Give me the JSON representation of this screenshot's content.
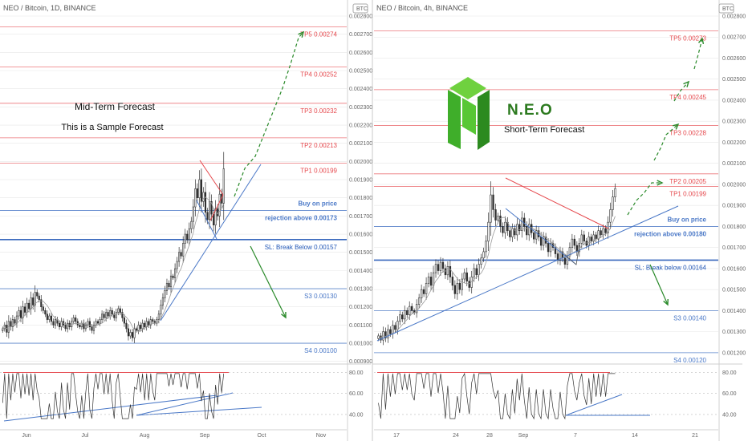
{
  "colors": {
    "tp_red": "#e5484d",
    "blue_level": "#4a78c7",
    "sl_blue": "#2257b6",
    "bull": "#2f2f2f",
    "bear": "#2f2f2f",
    "green_arrow": "#2a8a2a",
    "neo_green_light": "#58c735",
    "neo_green_dark": "#2c8a1f",
    "grid": "#e7e7e7",
    "rsi_red": "#e5484d"
  },
  "chart_data": [
    {
      "type": "candlestick",
      "title": "NEO / Bitcoin, 1D, BINANCE",
      "currency_badge": "BTC",
      "x_tick_labels": [
        "Jun",
        "Jul",
        "Aug",
        "Sep",
        "Oct",
        "Nov"
      ],
      "ylim": [
        0.00089,
        0.0028
      ],
      "y_ticks": [
        "0.002800",
        "0.002700",
        "0.002600",
        "0.002500",
        "0.002400",
        "0.002300",
        "0.002200",
        "0.002100",
        "0.002000",
        "0.001900",
        "0.001800",
        "0.001700",
        "0.001600",
        "0.001500",
        "0.001400",
        "0.001300",
        "0.001200",
        "0.001100",
        "0.001000",
        "0.000900"
      ],
      "annotations": [
        "Mid-Term Forecast",
        "This is a Sample Forecast"
      ],
      "levels": [
        {
          "label": "TP5 0.00274",
          "value": 0.00274,
          "color": "tp_red"
        },
        {
          "label": "TP4 0.00252",
          "value": 0.00252,
          "color": "tp_red"
        },
        {
          "label": "TP3 0.00232",
          "value": 0.00232,
          "color": "tp_red"
        },
        {
          "label": "TP2 0.00213",
          "value": 0.00213,
          "color": "tp_red"
        },
        {
          "label": "TP1 0.00199",
          "value": 0.00199,
          "color": "tp_red"
        },
        {
          "label": "Buy on price",
          "label2": "rejection above 0.00173",
          "value": 0.00173,
          "color": "blue_level"
        },
        {
          "label": "SL: Break Below 0.00157",
          "value": 0.00157,
          "color": "sl_blue"
        },
        {
          "label": "S3 0.00130",
          "value": 0.0013,
          "color": "blue_level"
        },
        {
          "label": "S4 0.00100",
          "value": 0.001,
          "color": "blue_level"
        }
      ],
      "closes": [
        0.00108,
        0.0011,
        0.00106,
        0.00112,
        0.00109,
        0.00113,
        0.00111,
        0.00115,
        0.00118,
        0.00114,
        0.0012,
        0.00117,
        0.00122,
        0.00119,
        0.00125,
        0.00121,
        0.00128,
        0.00126,
        0.00124,
        0.0012,
        0.00118,
        0.00116,
        0.00113,
        0.00115,
        0.00112,
        0.0011,
        0.00113,
        0.00111,
        0.00109,
        0.00112,
        0.0011,
        0.00108,
        0.00111,
        0.00109,
        0.00112,
        0.00114,
        0.00112,
        0.0011,
        0.00109,
        0.00111,
        0.00108,
        0.0011,
        0.00112,
        0.00109,
        0.00107,
        0.0011,
        0.00112,
        0.00111,
        0.00113,
        0.00116,
        0.00114,
        0.00117,
        0.00115,
        0.00118,
        0.00116,
        0.00114,
        0.00117,
        0.00119,
        0.00117,
        0.00114,
        0.00111,
        0.00108,
        0.00104,
        0.00106,
        0.00103,
        0.00108,
        0.00107,
        0.0011,
        0.00108,
        0.00111,
        0.00109,
        0.00112,
        0.0011,
        0.00113,
        0.00112,
        0.00111,
        0.00113,
        0.00116,
        0.00121,
        0.00125,
        0.00129,
        0.00133,
        0.00131,
        0.00137,
        0.00136,
        0.00141,
        0.00145,
        0.0015,
        0.00148,
        0.00155,
        0.0016,
        0.00157,
        0.00163,
        0.00167,
        0.00175,
        0.00185,
        0.0018,
        0.0019,
        0.00178,
        0.00183,
        0.00172,
        0.00168,
        0.00178,
        0.00171,
        0.00165,
        0.00174,
        0.0017,
        0.00182,
        0.00177,
        0.00196
      ],
      "rsi": {
        "ylim": [
          30,
          85
        ],
        "ticks": [
          "80.00",
          "60.00",
          "40.00"
        ],
        "overbought_line": 80
      }
    },
    {
      "type": "candlestick",
      "title": "NEO / Bitcoin, 4h, BINANCE",
      "currency_badge": "BTC",
      "x_tick_labels": [
        "17",
        "24",
        "28",
        "Sep",
        "7",
        "14",
        "21"
      ],
      "ylim": [
        0.00115,
        0.0028
      ],
      "y_ticks": [
        "0.002800",
        "0.002700",
        "0.002600",
        "0.002500",
        "0.002400",
        "0.002300",
        "0.002200",
        "0.002100",
        "0.002000",
        "0.001900",
        "0.001800",
        "0.001700",
        "0.001600",
        "0.001500",
        "0.001400",
        "0.001300",
        "0.001200"
      ],
      "brand": "N.E.O",
      "annotations": [
        "Short-Term Forecast"
      ],
      "levels": [
        {
          "label": "TP5 0.00273",
          "value": 0.00273,
          "color": "tp_red"
        },
        {
          "label": "TP4 0.00245",
          "value": 0.00245,
          "color": "tp_red"
        },
        {
          "label": "TP3 0.00228",
          "value": 0.00228,
          "color": "tp_red"
        },
        {
          "label": "TP2 0.00205",
          "value": 0.00205,
          "color": "tp_red"
        },
        {
          "label": "TP1 0.00199",
          "value": 0.00199,
          "color": "tp_red"
        },
        {
          "label": "Buy on price",
          "label2": "rejection above 0.00180",
          "value": 0.0018,
          "color": "blue_level"
        },
        {
          "label": "SL: Break below 0.00164",
          "value": 0.00164,
          "color": "sl_blue"
        },
        {
          "label": "S3 0.00140",
          "value": 0.0014,
          "color": "blue_level"
        },
        {
          "label": "S4 0.00120",
          "value": 0.0012,
          "color": "blue_level"
        }
      ],
      "closes": [
        0.00128,
        0.00126,
        0.0013,
        0.00127,
        0.00131,
        0.00129,
        0.00133,
        0.00131,
        0.00135,
        0.00138,
        0.00136,
        0.0014,
        0.00138,
        0.00142,
        0.0014,
        0.00139,
        0.00143,
        0.00146,
        0.0015,
        0.00148,
        0.00153,
        0.00156,
        0.00152,
        0.00158,
        0.00162,
        0.00159,
        0.00163,
        0.0016,
        0.00157,
        0.00161,
        0.00156,
        0.00152,
        0.00148,
        0.00153,
        0.0015,
        0.00155,
        0.00158,
        0.00154,
        0.00151,
        0.00156,
        0.0016,
        0.00157,
        0.00162,
        0.00165,
        0.00168,
        0.00173,
        0.00182,
        0.00195,
        0.00188,
        0.00183,
        0.00185,
        0.0018,
        0.00177,
        0.00182,
        0.00178,
        0.00175,
        0.00179,
        0.00176,
        0.00181,
        0.00178,
        0.00184,
        0.0018,
        0.00176,
        0.00181,
        0.00177,
        0.00174,
        0.00178,
        0.00175,
        0.00171,
        0.00175,
        0.00172,
        0.00168,
        0.00172,
        0.0017,
        0.00167,
        0.00164,
        0.00168,
        0.00165,
        0.00162,
        0.00166,
        0.0017,
        0.00174,
        0.00171,
        0.00168,
        0.00172,
        0.00176,
        0.00173,
        0.00171,
        0.00175,
        0.00173,
        0.00176,
        0.00174,
        0.00178,
        0.00176,
        0.00179,
        0.00177,
        0.00182,
        0.00188,
        0.00194,
        0.00198
      ],
      "rsi": {
        "ylim": [
          30,
          85
        ],
        "ticks": [
          "80.00",
          "60.00",
          "40.00"
        ],
        "overbought_line": 80
      }
    }
  ]
}
